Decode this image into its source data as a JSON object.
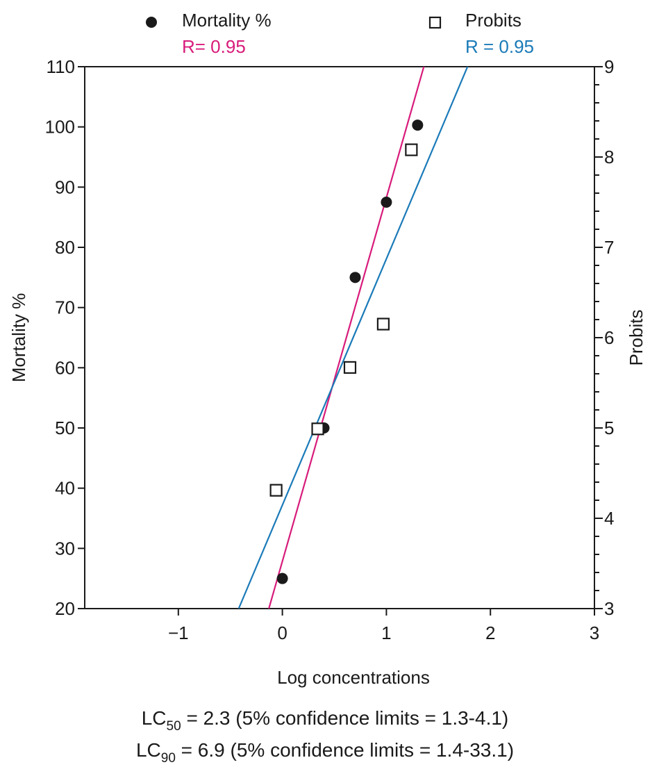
{
  "chart_data": {
    "type": "scatter",
    "xlabel": "Log concentrations",
    "ylabel": "Mortality %",
    "y2label": "Probits",
    "xlim": [
      -1.9,
      3
    ],
    "ylim": [
      20,
      110
    ],
    "y2lim": [
      3,
      9
    ],
    "xticks": [
      -1,
      0,
      1,
      2,
      3
    ],
    "xtick_labels": [
      "−1",
      "0",
      "1",
      "2",
      "3"
    ],
    "yticks": [
      20,
      30,
      40,
      50,
      60,
      70,
      80,
      90,
      100,
      110
    ],
    "y2ticks": [
      3,
      4,
      5,
      6,
      7,
      8,
      9
    ],
    "grid": false,
    "legend_position": "top",
    "series": [
      {
        "name": "Mortality %",
        "marker": "filled-circle",
        "axis": "left",
        "color": "#1a1a1a",
        "x": [
          0.0,
          0.4,
          0.7,
          1.0,
          1.3
        ],
        "y": [
          25,
          50,
          75,
          87.5,
          100.3
        ],
        "r_label": "R= 0.95",
        "r_color": "#d81b7a",
        "fit_line": {
          "color": "#d81b7a",
          "x": [
            -0.13,
            1.36
          ],
          "y": [
            20,
            110
          ]
        }
      },
      {
        "name": "Probits",
        "marker": "open-square",
        "axis": "right",
        "color": "#1a1a1a",
        "x": [
          -0.06,
          0.34,
          0.65,
          0.97,
          1.24
        ],
        "y": [
          4.31,
          4.99,
          5.67,
          6.15,
          8.08
        ],
        "r_label": "R = 0.95",
        "r_color": "#1a7ab8",
        "fit_line": {
          "color": "#1a7ab8",
          "x": [
            -0.42,
            1.78
          ],
          "y": [
            3,
            9
          ]
        }
      }
    ]
  },
  "notes": {
    "lc50": {
      "prefix": "LC",
      "sub": "50",
      "text": " = 2.3 (5% confidence limits = 1.3-4.1)"
    },
    "lc90": {
      "prefix": "LC",
      "sub": "90",
      "text": " = 6.9 (5% confidence limits = 1.4-33.1)"
    }
  }
}
